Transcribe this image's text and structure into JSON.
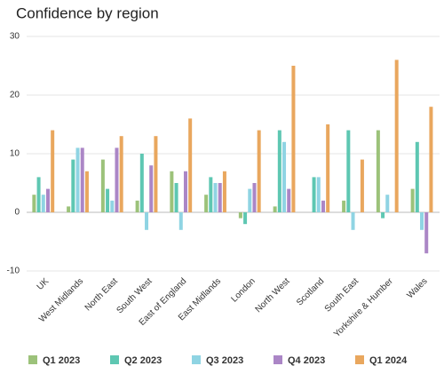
{
  "chart_data": {
    "type": "bar",
    "title": "Confidence by region",
    "categories": [
      "UK",
      "West Midlands",
      "North East",
      "South West",
      "East of England",
      "East Midlands",
      "London",
      "North West",
      "Scotland",
      "South East",
      "Yorkshire & Humber",
      "Wales"
    ],
    "series": [
      {
        "name": "Q1 2023",
        "color": "#9cc27a",
        "values": [
          3,
          1,
          9,
          2,
          7,
          3,
          -1,
          1,
          0,
          2,
          14,
          4
        ]
      },
      {
        "name": "Q2 2023",
        "color": "#5ec7b2",
        "values": [
          6,
          9,
          4,
          10,
          5,
          6,
          -2,
          14,
          6,
          14,
          -1,
          12
        ]
      },
      {
        "name": "Q3 2023",
        "color": "#8fd4e3",
        "values": [
          3,
          11,
          2,
          -3,
          -3,
          5,
          4,
          12,
          6,
          -3,
          3,
          -3
        ]
      },
      {
        "name": "Q4 2023",
        "color": "#ab86c6",
        "values": [
          4,
          11,
          11,
          8,
          7,
          5,
          5,
          4,
          2,
          0,
          0,
          -7
        ]
      },
      {
        "name": "Q1 2024",
        "color": "#e9a75e",
        "values": [
          14,
          7,
          13,
          13,
          16,
          7,
          14,
          25,
          15,
          9,
          26,
          18
        ]
      }
    ],
    "ylim": [
      -10,
      30
    ],
    "yticks": [
      -10,
      0,
      10,
      20,
      30
    ],
    "grid": true
  }
}
